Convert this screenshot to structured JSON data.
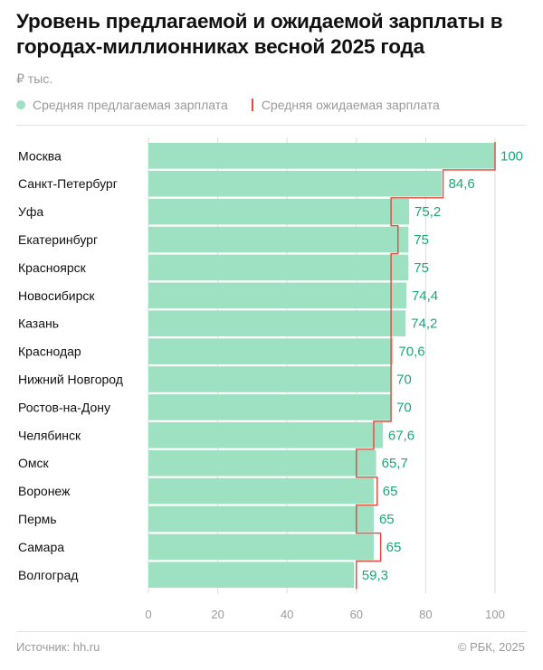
{
  "title": "Уровень предлагаемой и ожидаемой зарплаты в городах-миллионниках весной 2025 года",
  "unit": "₽ тыс.",
  "legend": {
    "offered": "Средняя предлагаемая зарплата",
    "expected": "Средняя ожидаемая зарплата"
  },
  "colors": {
    "bar": "#9ee0c2",
    "line": "#e8453c",
    "value_text": "#1aa874",
    "tick_text": "#9a9a9a",
    "grid": "#dcdcdc"
  },
  "chart_data": {
    "type": "bar",
    "orientation": "horizontal",
    "categories": [
      "Москва",
      "Санкт-Петербург",
      "Уфа",
      "Екатеринбург",
      "Красноярск",
      "Новосибирск",
      "Казань",
      "Краснодар",
      "Нижний Новгород",
      "Ростов-на-Дону",
      "Челябинск",
      "Омск",
      "Воронеж",
      "Пермь",
      "Самара",
      "Волгоград"
    ],
    "series": [
      {
        "name": "Средняя предлагаемая зарплата",
        "values": [
          100,
          84.6,
          75.2,
          75,
          75,
          74.4,
          74.2,
          70.6,
          70,
          70,
          67.6,
          65.7,
          65,
          65,
          65,
          59.3
        ]
      },
      {
        "name": "Средняя ожидаемая зарплата",
        "values": [
          100,
          85,
          70,
          72,
          70,
          70,
          70,
          70,
          70,
          70,
          65,
          60,
          66,
          60,
          67,
          60
        ]
      }
    ],
    "value_labels": [
      "100",
      "84,6",
      "75,2",
      "75",
      "75",
      "74,4",
      "74,2",
      "70,6",
      "70",
      "70",
      "67,6",
      "65,7",
      "65",
      "65",
      "65",
      "59,3"
    ],
    "xticks": [
      0,
      20,
      40,
      60,
      80,
      100
    ],
    "xlim": [
      0,
      100
    ],
    "grid": true,
    "legend_position": "top-left"
  },
  "footer": {
    "source": "Источник: hh.ru",
    "copyright": "© РБК, 2025"
  }
}
